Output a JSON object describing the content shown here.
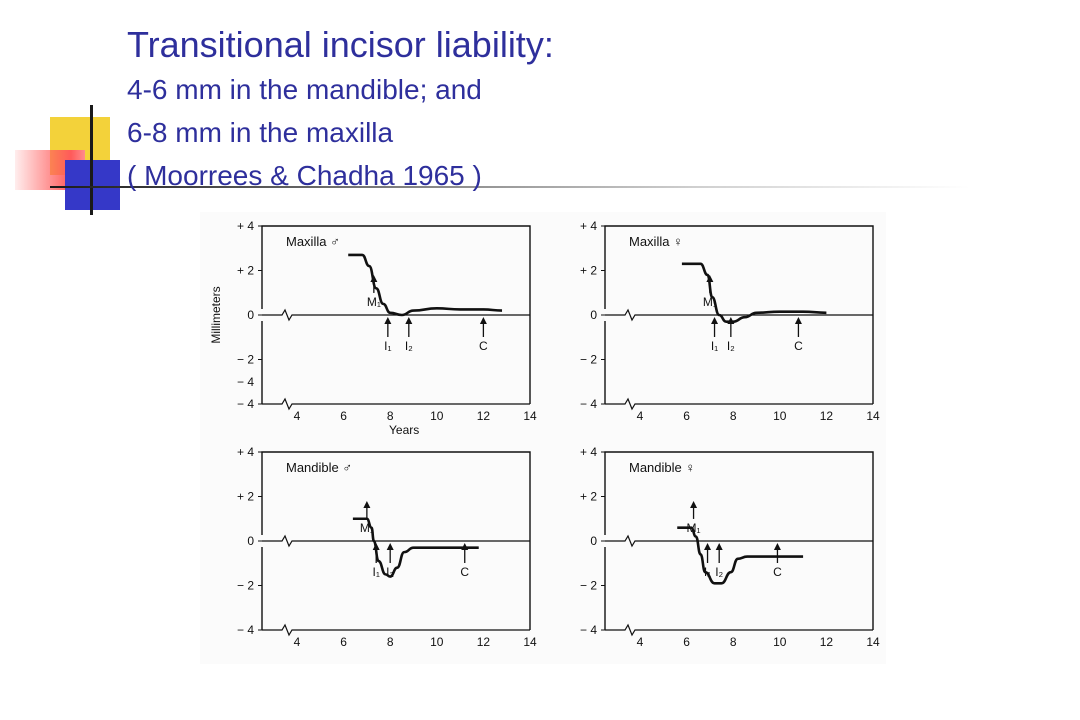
{
  "title": "Transitional incisor liability:",
  "lines": [
    "4-6 mm in the mandible; and",
    "6-8 mm in the maxilla",
    "( Moorrees & Chadha 1965 )"
  ],
  "accent_color": "#2e2f9c",
  "chart_data": [
    {
      "type": "line",
      "title": "Maxilla ♂",
      "ylabel": "Millimeters",
      "xlabel": "Years",
      "xlim": [
        2.5,
        14
      ],
      "ylim": [
        -4,
        4
      ],
      "yticks": [
        "+ 4",
        "+ 2",
        "0",
        "− 2",
        "− 4",
        "− 4"
      ],
      "xticks": [
        "4",
        "6",
        "8",
        "10",
        "12",
        "14"
      ],
      "x": [
        6.2,
        6.8,
        7.1,
        7.4,
        7.7,
        8.0,
        8.5,
        9.0,
        10.0,
        11.0,
        12.0,
        12.8
      ],
      "y": [
        2.7,
        2.7,
        2.2,
        1.2,
        0.5,
        0.1,
        0.0,
        0.2,
        0.3,
        0.25,
        0.25,
        0.2
      ],
      "annotations": [
        {
          "label": "M₁",
          "x": 7.3
        },
        {
          "label": "I₁",
          "x": 7.9
        },
        {
          "label": "I₂",
          "x": 8.8
        },
        {
          "label": "C",
          "x": 12.0
        }
      ]
    },
    {
      "type": "line",
      "title": "Maxilla ♀",
      "xlabel": "",
      "xlim": [
        2.5,
        14
      ],
      "ylim": [
        -4,
        4
      ],
      "yticks": [
        "+ 4",
        "+ 2",
        "0",
        "− 2",
        "− 4"
      ],
      "xticks": [
        "4",
        "6",
        "8",
        "10",
        "12",
        "14"
      ],
      "x": [
        5.8,
        6.6,
        6.9,
        7.1,
        7.4,
        7.7,
        8.0,
        8.5,
        9.0,
        10.0,
        11.0,
        12.0
      ],
      "y": [
        2.3,
        2.3,
        1.8,
        0.8,
        0.0,
        -0.3,
        -0.3,
        -0.1,
        0.1,
        0.15,
        0.15,
        0.1
      ],
      "annotations": [
        {
          "label": "M₁",
          "x": 7.0
        },
        {
          "label": "I₁",
          "x": 7.2
        },
        {
          "label": "I₂",
          "x": 7.9
        },
        {
          "label": "C",
          "x": 10.8
        }
      ]
    },
    {
      "type": "line",
      "title": "Mandible ♂",
      "xlabel": "",
      "xlim": [
        2.5,
        14
      ],
      "ylim": [
        -4,
        4
      ],
      "yticks": [
        "+ 4",
        "+ 2",
        "0",
        "− 2",
        "− 4"
      ],
      "xticks": [
        "4",
        "6",
        "8",
        "10",
        "12",
        "14"
      ],
      "x": [
        6.4,
        7.0,
        7.2,
        7.3,
        7.5,
        7.8,
        8.0,
        8.3,
        8.6,
        9.0,
        10.0,
        11.0,
        11.8
      ],
      "y": [
        1.0,
        1.0,
        0.6,
        0.0,
        -0.9,
        -1.5,
        -1.6,
        -1.2,
        -0.5,
        -0.3,
        -0.3,
        -0.3,
        -0.3
      ],
      "annotations": [
        {
          "label": "M₁",
          "x": 7.0
        },
        {
          "label": "I₁",
          "x": 7.4
        },
        {
          "label": "I₂",
          "x": 8.0
        },
        {
          "label": "C",
          "x": 11.2
        }
      ]
    },
    {
      "type": "line",
      "title": "Mandible ♀",
      "xlabel": "",
      "xlim": [
        2.5,
        14
      ],
      "ylim": [
        -4,
        4
      ],
      "yticks": [
        "+ 4",
        "+ 2",
        "0",
        "− 2",
        "− 4"
      ],
      "xticks": [
        "4",
        "6",
        "8",
        "10",
        "12",
        "14"
      ],
      "x": [
        5.6,
        6.2,
        6.4,
        6.6,
        6.8,
        7.2,
        7.5,
        7.9,
        8.2,
        8.6,
        9.2,
        10.0,
        11.0
      ],
      "y": [
        0.6,
        0.6,
        0.2,
        -0.6,
        -1.4,
        -1.9,
        -1.9,
        -1.4,
        -0.8,
        -0.7,
        -0.7,
        -0.7,
        -0.7
      ],
      "annotations": [
        {
          "label": "M₁",
          "x": 6.3
        },
        {
          "label": "I₁",
          "x": 6.9
        },
        {
          "label": "I₂",
          "x": 7.4
        },
        {
          "label": "C",
          "x": 9.9
        }
      ]
    }
  ]
}
